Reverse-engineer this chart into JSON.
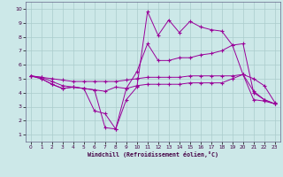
{
  "xlabel": "Windchill (Refroidissement éolien,°C)",
  "background_color": "#cce8e8",
  "grid_color": "#aacccc",
  "line_color": "#990099",
  "x_ticks": [
    0,
    1,
    2,
    3,
    4,
    5,
    6,
    7,
    8,
    9,
    10,
    11,
    12,
    13,
    14,
    15,
    16,
    17,
    18,
    19,
    20,
    21,
    22,
    23
  ],
  "y_ticks": [
    1,
    2,
    3,
    4,
    5,
    6,
    7,
    8,
    9,
    10
  ],
  "xlim": [
    -0.5,
    23.5
  ],
  "ylim": [
    0.5,
    10.5
  ],
  "line1_x": [
    0,
    1,
    2,
    3,
    4,
    5,
    6,
    7,
    8,
    9,
    10,
    11,
    12,
    13,
    14,
    15,
    16,
    17,
    18,
    19,
    20,
    21,
    22,
    23
  ],
  "line1_y": [
    5.2,
    5.1,
    5.0,
    4.9,
    4.8,
    4.8,
    4.8,
    4.8,
    4.8,
    4.9,
    5.0,
    5.1,
    5.1,
    5.1,
    5.1,
    5.2,
    5.2,
    5.2,
    5.2,
    5.2,
    5.3,
    5.0,
    4.5,
    3.3
  ],
  "line2_x": [
    0,
    1,
    2,
    3,
    4,
    5,
    6,
    7,
    8,
    9,
    10,
    11,
    12,
    13,
    14,
    15,
    16,
    17,
    18,
    19,
    20,
    21,
    22,
    23
  ],
  "line2_y": [
    5.2,
    5.1,
    4.8,
    4.5,
    4.4,
    4.3,
    4.2,
    4.1,
    4.4,
    4.3,
    4.5,
    4.6,
    4.6,
    4.6,
    4.6,
    4.7,
    4.7,
    4.7,
    4.7,
    5.0,
    5.3,
    3.5,
    3.4,
    3.2
  ],
  "line3_x": [
    0,
    1,
    2,
    3,
    4,
    5,
    6,
    7,
    8,
    9,
    10,
    11,
    12,
    13,
    14,
    15,
    16,
    17,
    18,
    19,
    20,
    21,
    22,
    23
  ],
  "line3_y": [
    5.2,
    5.0,
    4.6,
    4.3,
    4.4,
    4.3,
    2.7,
    2.5,
    1.4,
    4.3,
    5.5,
    7.5,
    6.3,
    6.3,
    6.5,
    6.5,
    6.7,
    6.8,
    7.0,
    7.4,
    7.5,
    4.0,
    3.5,
    3.2
  ],
  "line4_x": [
    0,
    1,
    2,
    3,
    4,
    5,
    6,
    7,
    8,
    9,
    10,
    11,
    12,
    13,
    14,
    15,
    16,
    17,
    18,
    19,
    20,
    21,
    22,
    23
  ],
  "line4_y": [
    5.2,
    5.0,
    4.6,
    4.3,
    4.4,
    4.3,
    4.2,
    1.5,
    1.4,
    3.5,
    4.4,
    9.8,
    8.1,
    9.2,
    8.3,
    9.1,
    8.7,
    8.5,
    8.4,
    7.4,
    5.3,
    4.1,
    3.5,
    3.2
  ]
}
